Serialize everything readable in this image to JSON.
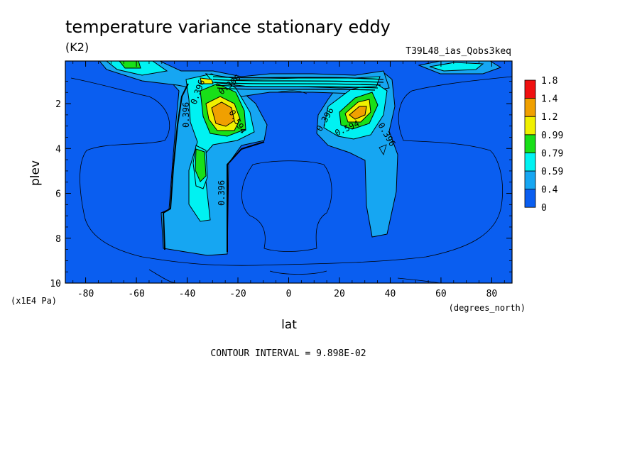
{
  "chart_data": {
    "type": "contour",
    "title": "temperature variance stationary eddy",
    "units": "(K2)",
    "run_label": "T39L48_ias_Qobs3keq",
    "xlabel": "lat",
    "x_units": "(degrees_north)",
    "ylabel": "plev",
    "y_units": "(x1E4 Pa)",
    "xlim": [
      -88,
      88
    ],
    "ylim": [
      10,
      0.1
    ],
    "x_ticks": [
      -80,
      -60,
      -40,
      -20,
      0,
      20,
      40,
      60,
      80
    ],
    "y_ticks": [
      2,
      4,
      6,
      8,
      10
    ],
    "colorbar": {
      "levels": [
        "0",
        "0.4",
        "0.59",
        "0.79",
        "0.99",
        "1.2",
        "1.4",
        "1.8"
      ],
      "colors": [
        "#0a5ef0",
        "#16a6f2",
        "#00f2f2",
        "#18e018",
        "#f0f000",
        "#f0a000",
        "#f01010"
      ]
    },
    "contour_labels": [
      "0.396",
      "0.396",
      "0.396",
      "0.396",
      "0.396",
      "0.594",
      "0.594",
      "0.396"
    ],
    "footer": "CONTOUR INTERVAL = 9.898E-02"
  }
}
